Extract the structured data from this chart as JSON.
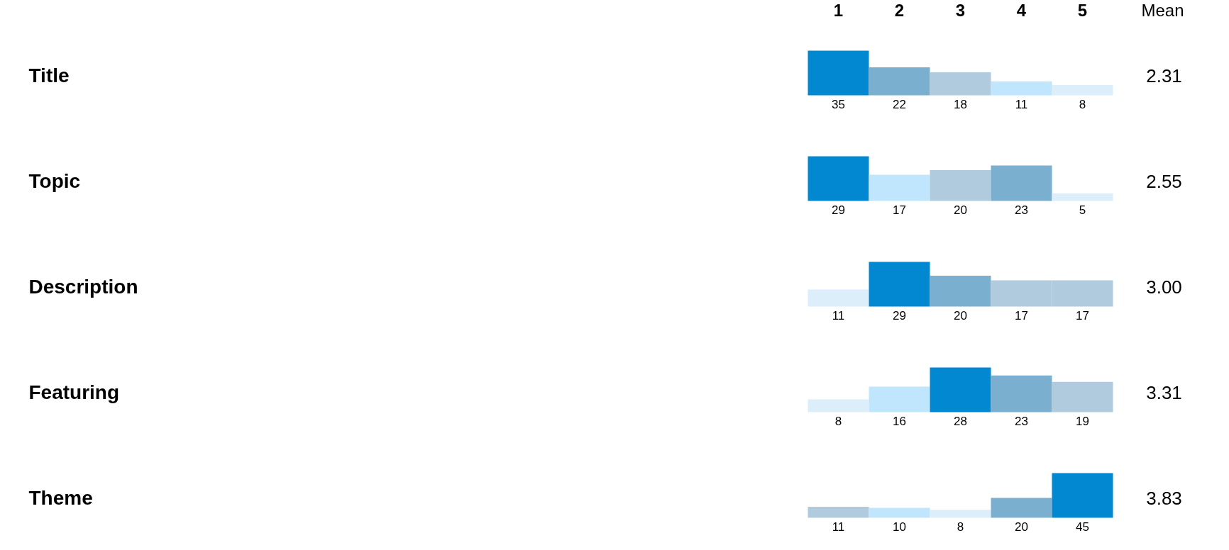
{
  "chart_data": [
    {
      "type": "bar",
      "ylabel": "Title",
      "categories": [
        "1",
        "2",
        "3",
        "4",
        "5"
      ],
      "tick_labels": "x",
      "values": [
        35,
        22,
        18,
        11,
        8
      ],
      "colors": [
        "#0288d1",
        "#7aafcf",
        "#afcbdd",
        "#bfe6fc",
        "#ddeefb"
      ],
      "data_labels": true,
      "annotations": [
        "Mean",
        "2.31"
      ]
    },
    {
      "type": "bar",
      "ylabel": "Topic",
      "categories": [
        null,
        null,
        null,
        null,
        null
      ],
      "tick_labels": false,
      "values": [
        29,
        17,
        20,
        23,
        5
      ],
      "colors": [
        "#0288d1",
        "#bfe6fc",
        "#afcbdd",
        "#7aafcf",
        "#ddeefb"
      ],
      "data_labels": true,
      "annotations": [
        "2.55"
      ]
    },
    {
      "type": "bar",
      "ylabel": "Description",
      "categories": [
        null,
        null,
        null,
        null,
        null
      ],
      "tick_labels": false,
      "values": [
        11,
        29,
        20,
        17,
        17
      ],
      "colors": [
        "#ddeefb",
        "#0288d1",
        "#7aafcf",
        "#afcbdd",
        "#afcbdd"
      ],
      "data_labels": true,
      "annotations": [
        "3.00"
      ]
    },
    {
      "type": "bar",
      "ylabel": "Featuring",
      "categories": [
        null,
        null,
        null,
        null,
        null
      ],
      "tick_labels": false,
      "values": [
        8,
        16,
        28,
        23,
        19
      ],
      "colors": [
        "#ddeefb",
        "#bfe6fc",
        "#0288d1",
        "#7aafcf",
        "#afcbdd"
      ],
      "data_labels": true,
      "annotations": [
        "3.31"
      ]
    },
    {
      "type": "bar",
      "ylabel": "Theme",
      "categories": [
        null,
        null,
        null,
        null,
        null
      ],
      "tick_labels": false,
      "values": [
        11,
        10,
        8,
        20,
        45
      ],
      "colors": [
        "#afcbdd",
        "#bfe6fc",
        "#ddeefb",
        "#7aafcf",
        "#0288d1"
      ],
      "data_labels": true,
      "annotations": [
        "3.83"
      ]
    }
  ]
}
